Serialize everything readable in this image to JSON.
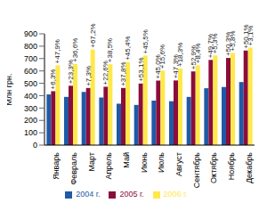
{
  "chart_data": {
    "type": "bar",
    "y_label": "Млн грн.",
    "categories": [
      "Январь",
      "Февраль",
      "Март",
      "Апрель",
      "Май",
      "Июнь",
      "Июль",
      "Август",
      "Сентябрь",
      "Октябрь",
      "Ноябрь",
      "Декабрь"
    ],
    "series": [
      {
        "name": "2004 г.",
        "color": "#1f5aa6",
        "values": [
          410,
          390,
          430,
          385,
          335,
          325,
          360,
          355,
          390,
          460,
          470,
          510
        ]
      },
      {
        "name": "2005 г.",
        "color": "#8b0d3c",
        "values": [
          436,
          480,
          462,
          472,
          462,
          498,
          522,
          523,
          596,
          689,
          705,
          765
        ],
        "annotations": [
          "+6,3%",
          "+23,3%",
          "+7,3%",
          "+22,6%",
          "+37,8%",
          "+53,1%",
          "+45,0%",
          "+47,3%",
          "+52,9%",
          "+49,7%",
          "+50,3%",
          "+50,1%"
        ]
      },
      {
        "name": "2006 г.",
        "color": "#ffe84a",
        "values": [
          645,
          655,
          772,
          654,
          671,
          724,
          603,
          619,
          646,
          725,
          746,
          789
        ],
        "annotations": [
          "+47,9%",
          "+36,6%",
          "+67,2%",
          "+38,5%",
          "+45,4%",
          "+45,5%",
          "+15,6%",
          "+18,3%",
          "+8,4%",
          "+5,3%",
          "+5,8%",
          "+3,1%"
        ]
      }
    ],
    "ylim": [
      0,
      900
    ],
    "yticks": [
      0,
      100,
      200,
      300,
      400,
      500,
      600,
      700,
      800,
      900
    ],
    "grid": false,
    "legend": "bottom"
  }
}
